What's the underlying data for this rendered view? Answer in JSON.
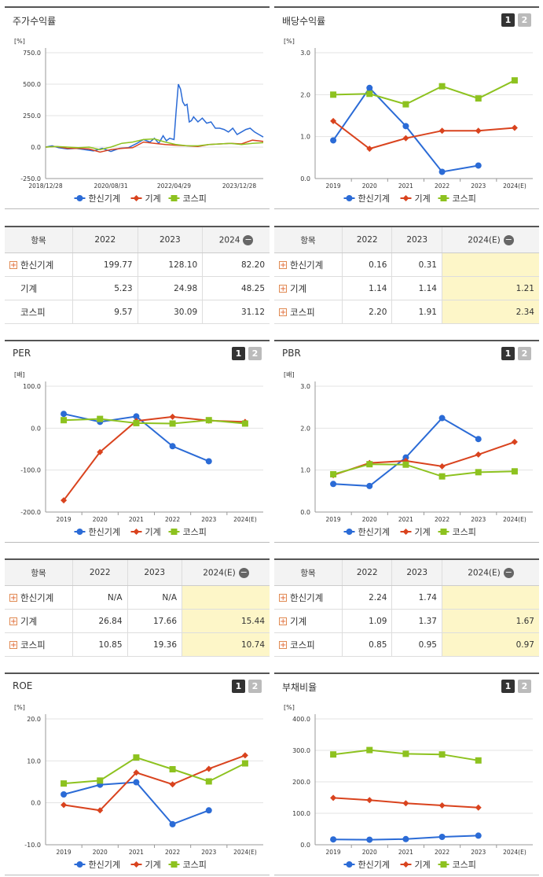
{
  "legend_names": [
    "한신기계",
    "기계",
    "코스피"
  ],
  "colors": {
    "s1": "#2b6bd6",
    "s2": "#d9431e",
    "s3": "#8dc21f"
  },
  "charts": [
    {
      "id": "stock",
      "title": "주가수익률",
      "buttons": [],
      "chart_data": {
        "type": "line",
        "unit": "[%]",
        "y_ticks": [
          "750.0",
          "500.0",
          "250.0",
          "0.0",
          "-250.0"
        ],
        "ylim": [
          -250,
          750
        ],
        "x_tick_labels": [
          "2018/12/28",
          "2020/08/31",
          "2022/04/29",
          "2023/12/28"
        ],
        "x_tick_pos": [
          0,
          0.3,
          0.59,
          0.89
        ],
        "series": [
          {
            "name": "한신기계",
            "t": [
              0,
              0.03,
              0.06,
              0.1,
              0.14,
              0.18,
              0.22,
              0.26,
              0.3,
              0.34,
              0.38,
              0.42,
              0.45,
              0.48,
              0.5,
              0.52,
              0.54,
              0.555,
              0.57,
              0.59,
              0.6,
              0.61,
              0.62,
              0.63,
              0.64,
              0.65,
              0.66,
              0.67,
              0.68,
              0.7,
              0.72,
              0.74,
              0.76,
              0.78,
              0.8,
              0.82,
              0.84,
              0.86,
              0.88,
              0.9,
              0.92,
              0.94,
              0.96,
              0.98,
              1.0
            ],
            "y": [
              0,
              10,
              -5,
              -15,
              -10,
              -20,
              -30,
              -10,
              -35,
              -10,
              -5,
              30,
              60,
              40,
              70,
              30,
              90,
              50,
              70,
              60,
              290,
              500,
              460,
              360,
              330,
              340,
              200,
              210,
              240,
              200,
              230,
              190,
              200,
              150,
              150,
              140,
              120,
              150,
              100,
              120,
              140,
              150,
              120,
              100,
              80
            ]
          },
          {
            "name": "기계",
            "t": [
              0,
              0.05,
              0.1,
              0.15,
              0.2,
              0.25,
              0.3,
              0.35,
              0.4,
              0.45,
              0.5,
              0.55,
              0.6,
              0.65,
              0.7,
              0.75,
              0.8,
              0.85,
              0.9,
              0.95,
              1.0
            ],
            "y": [
              0,
              5,
              -10,
              -10,
              -15,
              -40,
              -20,
              -10,
              -5,
              40,
              30,
              20,
              15,
              10,
              5,
              20,
              25,
              30,
              25,
              55,
              45
            ]
          },
          {
            "name": "코스피",
            "t": [
              0,
              0.05,
              0.1,
              0.15,
              0.2,
              0.25,
              0.3,
              0.35,
              0.4,
              0.45,
              0.5,
              0.55,
              0.6,
              0.65,
              0.7,
              0.75,
              0.8,
              0.85,
              0.9,
              0.95,
              1.0
            ],
            "y": [
              0,
              5,
              0,
              -5,
              0,
              -20,
              0,
              30,
              40,
              60,
              65,
              40,
              20,
              10,
              10,
              20,
              25,
              30,
              20,
              30,
              35
            ]
          }
        ]
      }
    },
    {
      "id": "dividend",
      "title": "배당수익률",
      "buttons": [
        "1",
        "2"
      ],
      "chart_data": {
        "type": "line",
        "unit": "[%]",
        "y_ticks": [
          "3.0",
          "2.0",
          "1.0",
          "0.0"
        ],
        "ylim": [
          0,
          3
        ],
        "categories": [
          "2019",
          "2020",
          "2021",
          "2022",
          "2023",
          "2024(E)"
        ],
        "series": [
          {
            "name": "한신기계",
            "values": [
              0.91,
              2.16,
              1.25,
              0.16,
              0.31,
              null
            ]
          },
          {
            "name": "기계",
            "values": [
              1.37,
              0.71,
              0.96,
              1.14,
              1.14,
              1.21
            ]
          },
          {
            "name": "코스피",
            "values": [
              2.0,
              2.02,
              1.77,
              2.2,
              1.91,
              2.34
            ]
          }
        ]
      }
    },
    {
      "id": "per",
      "title": "PER",
      "buttons": [
        "1",
        "2"
      ],
      "chart_data": {
        "type": "line",
        "unit": "[배]",
        "y_ticks": [
          "100.0",
          "0.0",
          "-100.0",
          "-200.0"
        ],
        "ylim": [
          -200,
          100
        ],
        "categories": [
          "2019",
          "2020",
          "2021",
          "2022",
          "2023",
          "2024(E)"
        ],
        "series": [
          {
            "name": "한신기계",
            "values": [
              34,
              15,
              28,
              -43,
              -79,
              null
            ]
          },
          {
            "name": "기계",
            "values": [
              -172,
              -57,
              17,
              27,
              18,
              15
            ]
          },
          {
            "name": "코스피",
            "values": [
              19,
              22,
              12,
              11,
              19,
              11
            ]
          }
        ]
      }
    },
    {
      "id": "pbr",
      "title": "PBR",
      "buttons": [
        "1",
        "2"
      ],
      "chart_data": {
        "type": "line",
        "unit": "[배]",
        "y_ticks": [
          "3.0",
          "2.0",
          "1.0",
          "0.0"
        ],
        "ylim": [
          0,
          3
        ],
        "categories": [
          "2019",
          "2020",
          "2021",
          "2022",
          "2023",
          "2024(E)"
        ],
        "series": [
          {
            "name": "한신기계",
            "values": [
              0.67,
              0.62,
              1.3,
              2.24,
              1.74,
              null
            ]
          },
          {
            "name": "기계",
            "values": [
              0.88,
              1.17,
              1.22,
              1.09,
              1.37,
              1.67
            ]
          },
          {
            "name": "코스피",
            "values": [
              0.9,
              1.14,
              1.13,
              0.85,
              0.95,
              0.97
            ]
          }
        ]
      }
    },
    {
      "id": "roe",
      "title": "ROE",
      "buttons": [
        "1",
        "2"
      ],
      "chart_data": {
        "type": "line",
        "unit": "[%]",
        "y_ticks": [
          "20.0",
          "10.0",
          "0.0",
          "-10.0"
        ],
        "ylim": [
          -10,
          20
        ],
        "categories": [
          "2019",
          "2020",
          "2021",
          "2022",
          "2023",
          "2024(E)"
        ],
        "series": [
          {
            "name": "한신기계",
            "values": [
              2.0,
              4.3,
              4.9,
              -5.1,
              -1.8,
              null
            ]
          },
          {
            "name": "기계",
            "values": [
              -0.5,
              -1.8,
              7.2,
              4.4,
              8.1,
              11.3
            ]
          },
          {
            "name": "코스피",
            "values": [
              4.6,
              5.3,
              10.8,
              8.0,
              5.1,
              9.4
            ]
          }
        ]
      }
    },
    {
      "id": "debt",
      "title": "부채비율",
      "buttons": [
        "1",
        "2"
      ],
      "chart_data": {
        "type": "line",
        "unit": "[%]",
        "y_ticks": [
          "400.0",
          "300.0",
          "200.0",
          "100.0",
          "0.0"
        ],
        "ylim": [
          0,
          400
        ],
        "categories": [
          "2019",
          "2020",
          "2021",
          "2022",
          "2023",
          "2024(E)"
        ],
        "series": [
          {
            "name": "한신기계",
            "values": [
              17,
              16,
              18,
              25,
              29,
              null
            ]
          },
          {
            "name": "기계",
            "values": [
              149,
              142,
              132,
              125,
              118,
              null
            ]
          },
          {
            "name": "코스피",
            "values": [
              287,
              301,
              289,
              287,
              268,
              null
            ]
          }
        ]
      }
    }
  ],
  "tables": [
    {
      "id": "stock-table",
      "headers": [
        "항목",
        "2022",
        "2023",
        "2024"
      ],
      "rows": [
        {
          "label": "한신기계",
          "plus": true,
          "cells": [
            "199.77",
            "128.10",
            "82.20"
          ]
        },
        {
          "label": "기계",
          "plus": false,
          "cells": [
            "5.23",
            "24.98",
            "48.25"
          ]
        },
        {
          "label": "코스피",
          "plus": false,
          "cells": [
            "9.57",
            "30.09",
            "31.12"
          ]
        }
      ]
    },
    {
      "id": "dividend-table",
      "headers": [
        "항목",
        "2022",
        "2023",
        "2024(E)"
      ],
      "rows": [
        {
          "label": "한신기계",
          "plus": true,
          "cells": [
            "0.16",
            "0.31",
            ""
          ]
        },
        {
          "label": "기계",
          "plus": true,
          "cells": [
            "1.14",
            "1.14",
            "1.21"
          ]
        },
        {
          "label": "코스피",
          "plus": true,
          "cells": [
            "2.20",
            "1.91",
            "2.34"
          ]
        }
      ]
    },
    {
      "id": "per-table",
      "headers": [
        "항목",
        "2022",
        "2023",
        "2024(E)"
      ],
      "rows": [
        {
          "label": "한신기계",
          "plus": true,
          "cells": [
            "N/A",
            "N/A",
            ""
          ]
        },
        {
          "label": "기계",
          "plus": true,
          "cells": [
            "26.84",
            "17.66",
            "15.44"
          ]
        },
        {
          "label": "코스피",
          "plus": true,
          "cells": [
            "10.85",
            "19.36",
            "10.74"
          ]
        }
      ]
    },
    {
      "id": "pbr-table",
      "headers": [
        "항목",
        "2022",
        "2023",
        "2024(E)"
      ],
      "rows": [
        {
          "label": "한신기계",
          "plus": true,
          "cells": [
            "2.24",
            "1.74",
            ""
          ]
        },
        {
          "label": "기계",
          "plus": true,
          "cells": [
            "1.09",
            "1.37",
            "1.67"
          ]
        },
        {
          "label": "코스피",
          "plus": true,
          "cells": [
            "0.85",
            "0.95",
            "0.97"
          ]
        }
      ]
    }
  ]
}
